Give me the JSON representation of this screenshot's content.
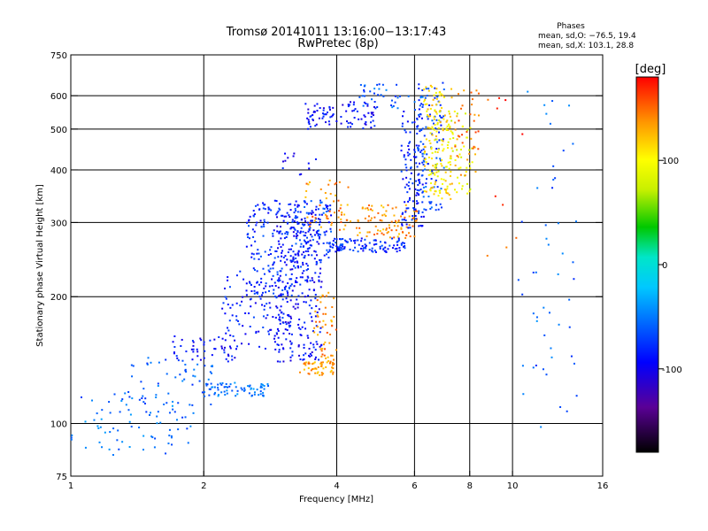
{
  "chart_data": {
    "type": "scatter",
    "title": "Tromsø 20141011 13:16:00−13:17:43",
    "subtitle": "RwPretec (8p)",
    "stats": {
      "header": "Phases",
      "line_o": "mean, sd,O: −76.5, 19.4",
      "line_x": "mean, sd,X: 103.1, 28.8"
    },
    "xlabel": "Frequency [MHz]",
    "ylabel": "Stationary phase Virtual Height [km]",
    "xscale": "log",
    "yscale": "log",
    "xlim": [
      1,
      16
    ],
    "ylim": [
      75,
      750
    ],
    "xticks": [
      1,
      2,
      4,
      6,
      8,
      10,
      16
    ],
    "yticks": [
      75,
      100,
      200,
      300,
      400,
      500,
      600,
      750
    ],
    "xgrid": [
      2,
      4,
      6,
      8,
      10
    ],
    "ygrid": [
      100,
      200,
      300,
      400,
      500,
      600
    ],
    "colorbar": {
      "label": "[deg]",
      "range": [
        -180,
        180
      ],
      "ticks": [
        100,
        0,
        -100
      ]
    },
    "clusters": [
      {
        "f": [
          1.0,
          1.9
        ],
        "h": [
          84,
          118
        ],
        "phase": -55,
        "n": 70
      },
      {
        "f": [
          1.3,
          2.1
        ],
        "h": [
          110,
          145
        ],
        "phase": -60,
        "n": 60
      },
      {
        "f": [
          1.7,
          2.4
        ],
        "h": [
          140,
          162
        ],
        "phase": -90,
        "n": 50
      },
      {
        "f": [
          2.0,
          2.8
        ],
        "h": [
          116,
          125
        ],
        "phase": -55,
        "n": 70
      },
      {
        "f": [
          2.2,
          3.2
        ],
        "h": [
          150,
          230
        ],
        "phase": -85,
        "n": 110
      },
      {
        "f": [
          2.5,
          3.4
        ],
        "h": [
          200,
          340
        ],
        "phase": -80,
        "n": 180
      },
      {
        "f": [
          2.9,
          3.7
        ],
        "h": [
          140,
          320
        ],
        "phase": -92,
        "n": 260
      },
      {
        "f": [
          3.2,
          3.9
        ],
        "h": [
          240,
          340
        ],
        "phase": -75,
        "n": 90
      },
      {
        "f": [
          3.3,
          3.95
        ],
        "h": [
          130,
          140
        ],
        "phase": 135,
        "n": 50
      },
      {
        "f": [
          3.55,
          4.0
        ],
        "h": [
          140,
          205
        ],
        "phase": 140,
        "n": 50
      },
      {
        "f": [
          3.4,
          4.3
        ],
        "h": [
          285,
          380
        ],
        "phase": 140,
        "n": 50
      },
      {
        "f": [
          3.8,
          5.8
        ],
        "h": [
          255,
          275
        ],
        "phase": -82,
        "n": 110
      },
      {
        "f": [
          4.4,
          6.1
        ],
        "h": [
          275,
          330
        ],
        "phase": 138,
        "n": 90
      },
      {
        "f": [
          5.6,
          6.3
        ],
        "h": [
          290,
          560
        ],
        "phase": -82,
        "n": 120
      },
      {
        "f": [
          6.1,
          7.0
        ],
        "h": [
          315,
          650
        ],
        "phase": -70,
        "n": 110
      },
      {
        "f": [
          6.3,
          7.3
        ],
        "h": [
          340,
          640
        ],
        "phase": 112,
        "n": 130
      },
      {
        "f": [
          6.5,
          8.2
        ],
        "h": [
          350,
          560
        ],
        "phase": 88,
        "n": 80
      },
      {
        "f": [
          7.4,
          8.4
        ],
        "h": [
          380,
          640
        ],
        "phase": 145,
        "n": 40
      },
      {
        "f": [
          3.4,
          4.9
        ],
        "h": [
          500,
          580
        ],
        "phase": -92,
        "n": 90
      },
      {
        "f": [
          4.5,
          6.3
        ],
        "h": [
          560,
          640
        ],
        "phase": -62,
        "n": 40
      },
      {
        "f": [
          3.0,
          3.6
        ],
        "h": [
          385,
          440
        ],
        "phase": -90,
        "n": 12
      },
      {
        "f": [
          10.3,
          14.0
        ],
        "h": [
          95,
          640
        ],
        "phase": -60,
        "n": 50
      },
      {
        "f": [
          8.6,
          10.6
        ],
        "h": [
          200,
          640
        ],
        "phase": 160,
        "n": 10
      }
    ]
  }
}
